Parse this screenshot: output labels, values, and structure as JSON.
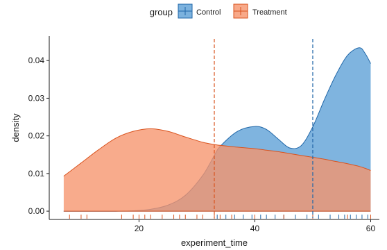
{
  "chart_data": {
    "type": "area",
    "title": "",
    "xlabel": "experiment_time",
    "ylabel": "density",
    "xlim": [
      4.5,
      61.5
    ],
    "ylim": [
      -0.0022,
      0.0465
    ],
    "x_ticks": [
      20,
      40,
      60
    ],
    "y_ticks": [
      0.0,
      0.01,
      0.02,
      0.03,
      0.04
    ],
    "y_tick_labels": [
      "0.00",
      "0.01",
      "0.02",
      "0.03",
      "0.04"
    ],
    "grid": false,
    "legend": {
      "title": "group",
      "placement": "top",
      "entries": [
        "Control",
        "Treatment"
      ]
    },
    "x": [
      7,
      10,
      13,
      16,
      19,
      22,
      25,
      28,
      31,
      33,
      34,
      37,
      40,
      42,
      44,
      46,
      48,
      50,
      52,
      54,
      56,
      58,
      59,
      60
    ],
    "series": [
      {
        "name": "Control",
        "color_fill": "#5b9fd6",
        "color_line": "#2167a8",
        "mean": 50,
        "values": [
          0.0,
          0.0,
          0.0,
          0.0,
          0.0001,
          0.0005,
          0.0016,
          0.0042,
          0.0095,
          0.0148,
          0.0172,
          0.0212,
          0.0225,
          0.0217,
          0.0192,
          0.0168,
          0.0174,
          0.0224,
          0.0296,
          0.0362,
          0.0414,
          0.0434,
          0.042,
          0.0392
        ]
      },
      {
        "name": "Treatment",
        "color_fill": "#f6946c",
        "color_line": "#d9531e",
        "mean": 33,
        "values": [
          0.0093,
          0.0128,
          0.0163,
          0.0194,
          0.0212,
          0.0219,
          0.0212,
          0.0197,
          0.0183,
          0.0177,
          0.0175,
          0.017,
          0.0166,
          0.0162,
          0.0158,
          0.0153,
          0.0148,
          0.0143,
          0.0138,
          0.0132,
          0.0126,
          0.0119,
          0.0114,
          0.0108
        ]
      }
    ],
    "rug": {
      "Control": [
        33.5,
        35,
        36.5,
        38,
        39.5,
        41,
        42,
        43.5,
        45,
        47,
        49,
        51,
        53,
        54.5,
        55.5,
        56.5,
        57.5,
        58.5,
        59.5
      ],
      "Treatment": [
        8,
        10,
        11,
        17,
        19,
        20,
        21,
        22,
        24,
        26,
        27,
        28,
        30,
        31,
        33,
        34,
        36,
        40,
        45,
        50,
        56,
        60
      ]
    }
  }
}
